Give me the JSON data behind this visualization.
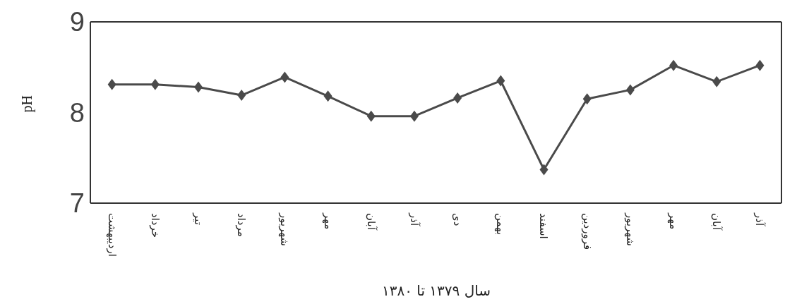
{
  "chart_data": {
    "type": "line",
    "xlabel": "سال ۱۳۷۹ تا ۱۳۸۰",
    "ylabel": "pH",
    "categories": [
      "اردیبهشت",
      "خرداد",
      "تیر",
      "مرداد",
      "شهریور",
      "مهر",
      "آبان",
      "آذر",
      "دی",
      "بهمن",
      "اسفند",
      "فروردین",
      "شهریور",
      "مهر",
      "آبان",
      "آذر"
    ],
    "series": [
      {
        "color": "#4a4a4a",
        "values": [
          8.31,
          8.31,
          8.28,
          8.19,
          8.39,
          8.18,
          7.96,
          7.96,
          8.16,
          8.35,
          7.37,
          8.15,
          8.25,
          8.52,
          8.34,
          8.52
        ]
      }
    ],
    "ylim": [
      7,
      9
    ],
    "yticks": [
      7,
      8,
      9
    ],
    "grid": false,
    "legend": false,
    "marker": "diamond",
    "line_style": "solid"
  }
}
